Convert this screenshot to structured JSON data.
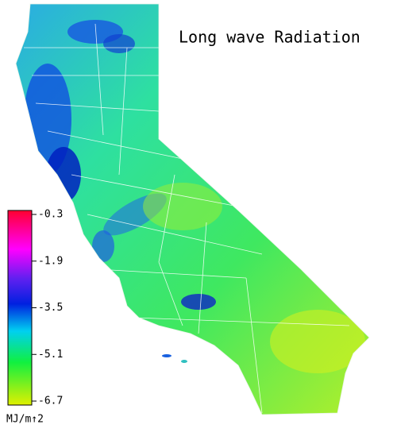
{
  "title": "Long wave Radiation",
  "legend": {
    "unit": "MJ/m↑2",
    "range": [
      -6.7,
      -0.3
    ],
    "ticks": [
      -0.3,
      -1.9,
      -3.5,
      -5.1,
      -6.7
    ]
  }
}
